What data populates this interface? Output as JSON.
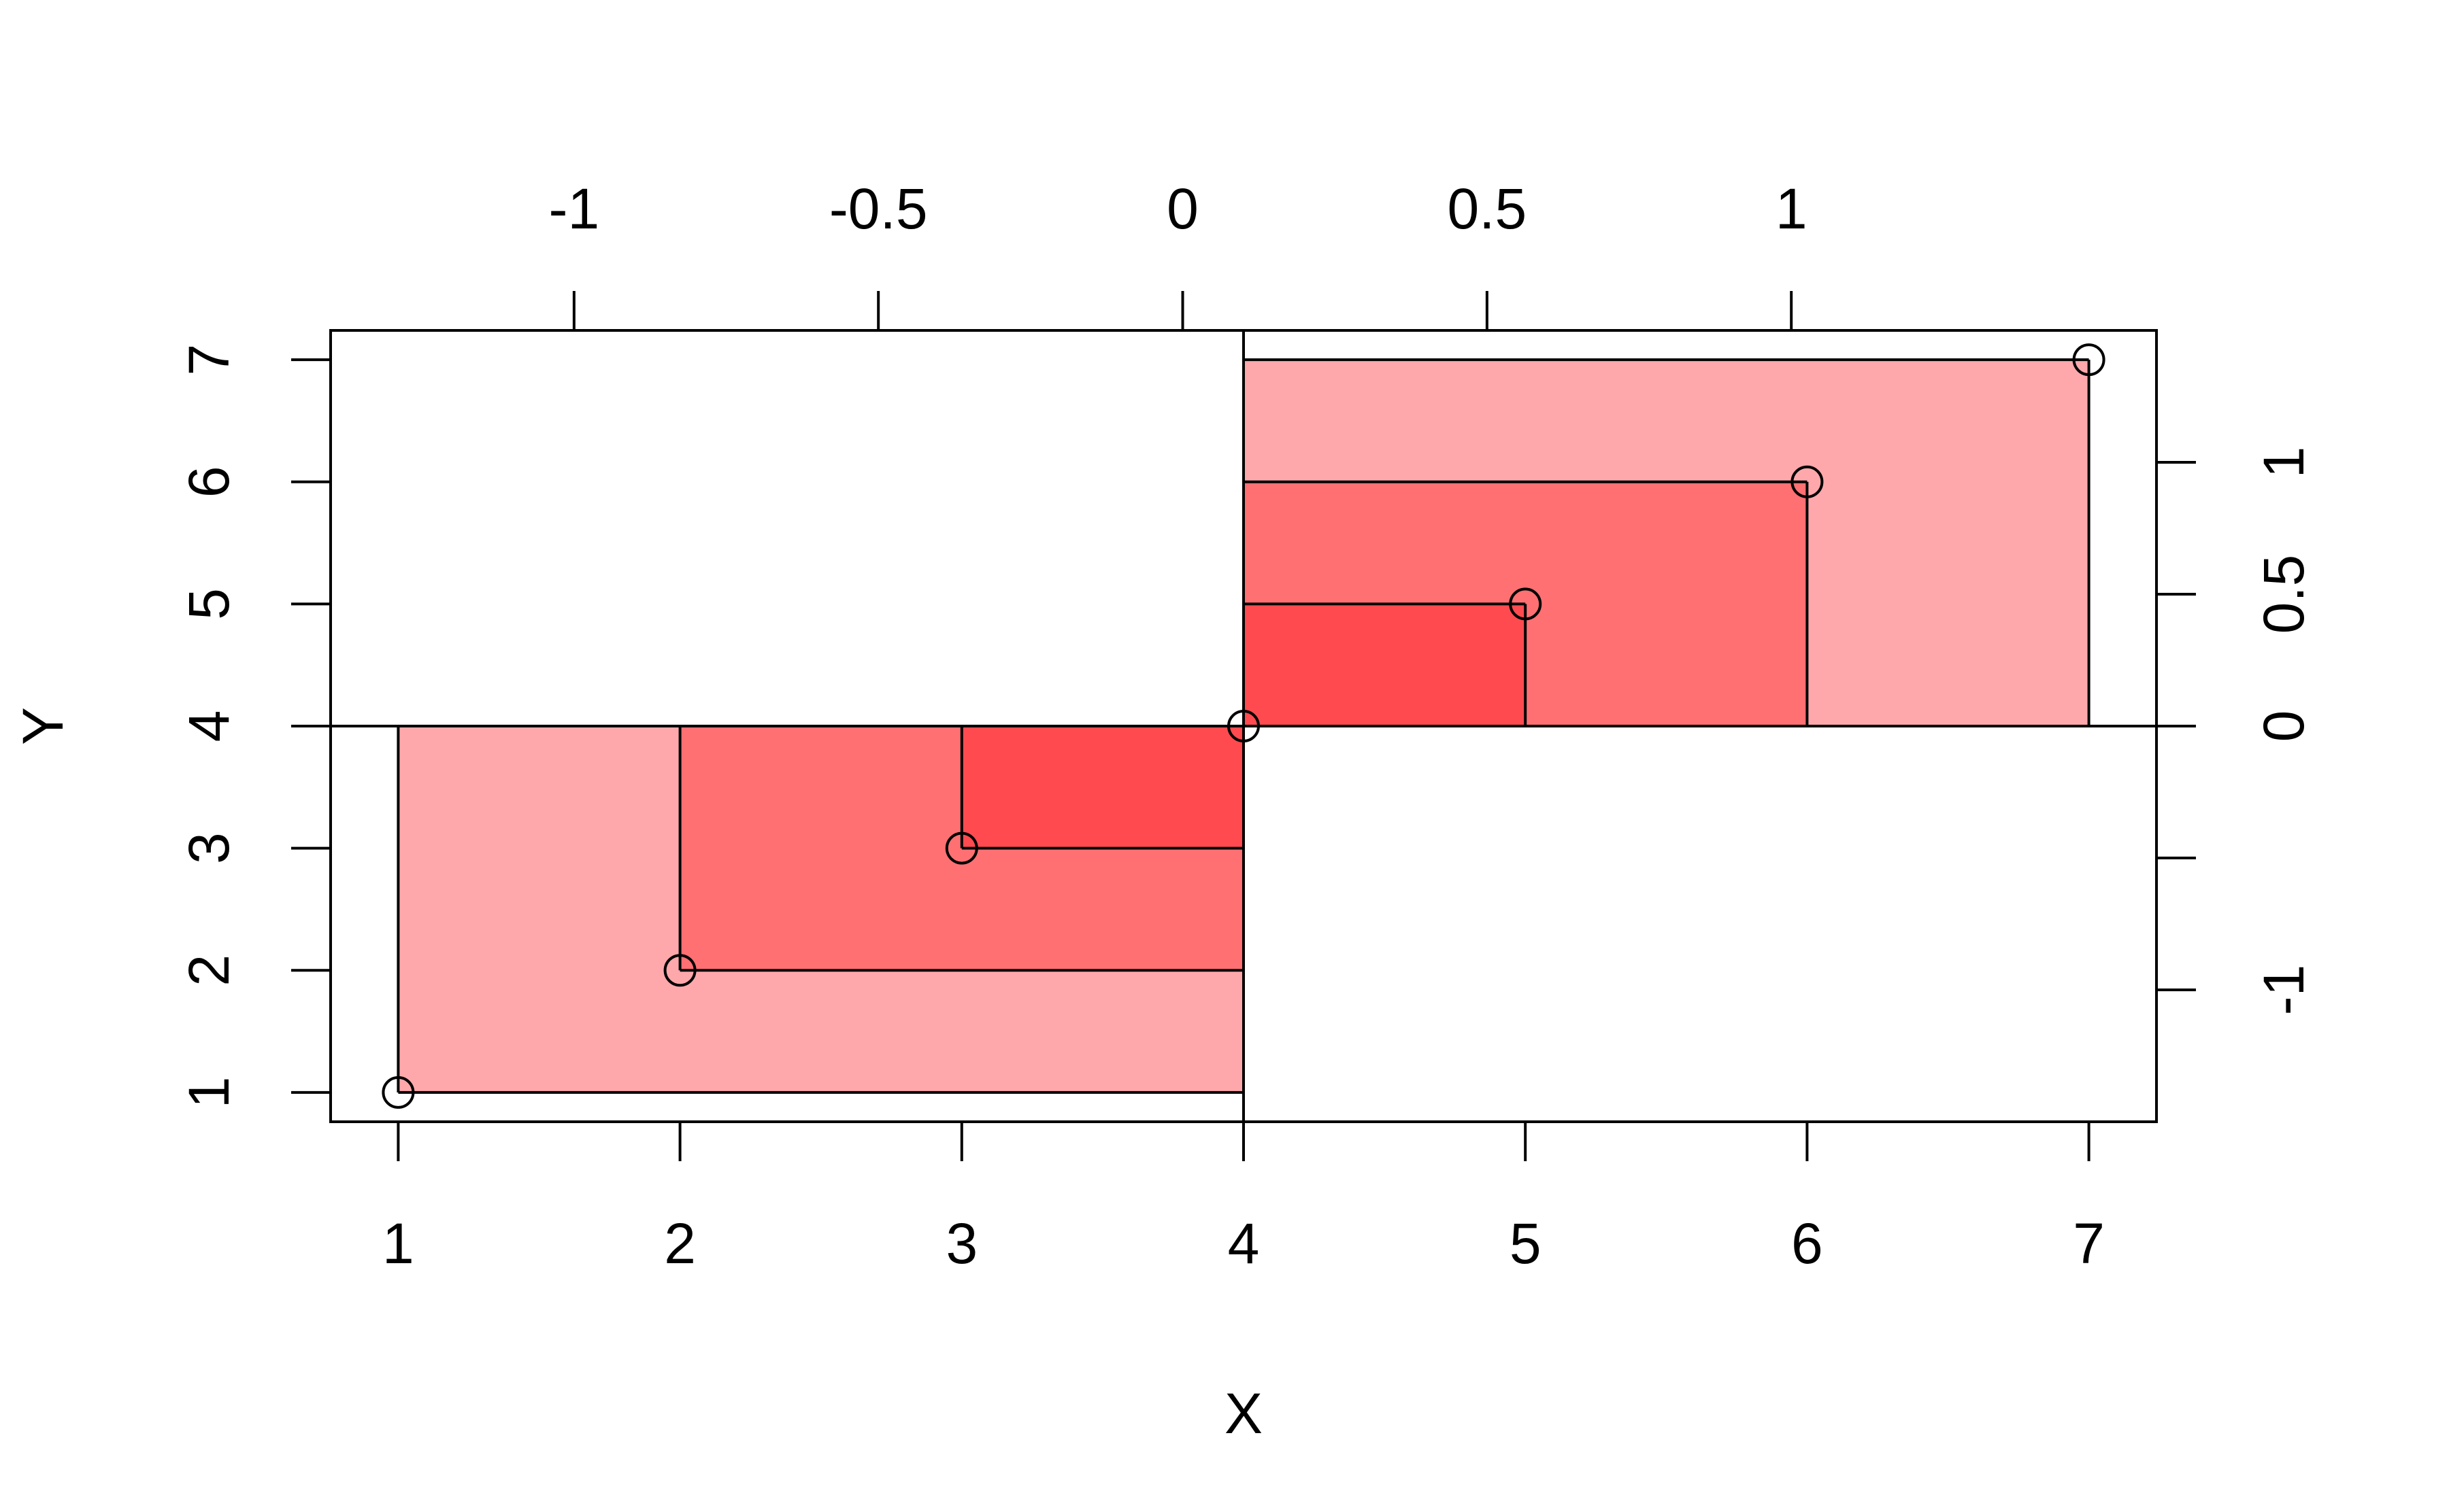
{
  "chart_data": {
    "type": "scatter",
    "xlabel": "X",
    "ylabel": "Y",
    "xlim": [
      0.76,
      7.24
    ],
    "ylim": [
      0.76,
      7.24
    ],
    "x_ticks": [
      "1",
      "2",
      "3",
      "4",
      "5",
      "6",
      "7"
    ],
    "y_ticks": [
      "1",
      "2",
      "3",
      "4",
      "5",
      "6",
      "7"
    ],
    "top_axis": {
      "ticks": [
        -1,
        -0.5,
        0,
        0.5,
        1
      ],
      "labels": [
        "-1",
        "-0.5",
        "0",
        "0.5",
        "1"
      ],
      "lim": [
        -1.4,
        1.6
      ]
    },
    "right_axis": {
      "ticks": [
        -1,
        -0.5,
        0,
        0.5,
        1
      ],
      "labels": [
        "-1",
        "",
        "0",
        "0.5",
        "1"
      ],
      "lim": [
        -1.5,
        1.5
      ]
    },
    "points": [
      {
        "x": 1,
        "y": 1
      },
      {
        "x": 2,
        "y": 2
      },
      {
        "x": 3,
        "y": 3
      },
      {
        "x": 4,
        "y": 4
      },
      {
        "x": 5,
        "y": 5
      },
      {
        "x": 6,
        "y": 6
      },
      {
        "x": 7,
        "y": 7
      }
    ],
    "rects": [
      {
        "x0": 1,
        "x1": 4,
        "y0": 1,
        "y1": 4,
        "color": "#FFA8AC"
      },
      {
        "x0": 2,
        "x1": 4,
        "y0": 2,
        "y1": 4,
        "color": "#FF7073"
      },
      {
        "x0": 3,
        "x1": 4,
        "y0": 3,
        "y1": 4,
        "color": "#FF4B4F"
      },
      {
        "x0": 4,
        "x1": 7,
        "y0": 4,
        "y1": 7,
        "color": "#FFA8AC"
      },
      {
        "x0": 4,
        "x1": 6,
        "y0": 4,
        "y1": 6,
        "color": "#FF7073"
      },
      {
        "x0": 4,
        "x1": 5,
        "y0": 4,
        "y1": 5,
        "color": "#FF4B4F"
      }
    ],
    "reference_lines": {
      "vertical_x": 4,
      "horizontal_y": 4
    },
    "grid": false,
    "legend": "none"
  }
}
